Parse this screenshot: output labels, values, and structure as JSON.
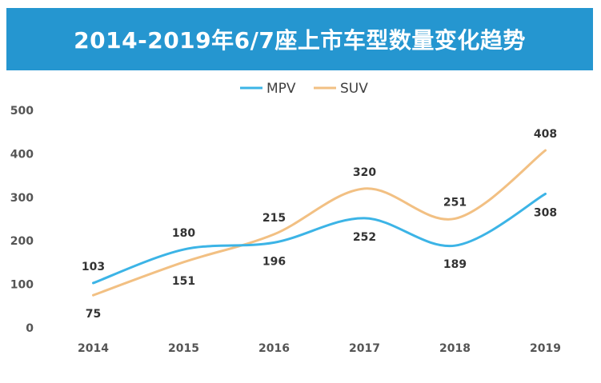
{
  "chart_data": {
    "type": "line",
    "title": "2014-2019年6/7座上市车型数量变化趋势",
    "categories": [
      "2014",
      "2015",
      "2016",
      "2017",
      "2018",
      "2019"
    ],
    "series": [
      {
        "name": "MPV",
        "values": [
          103,
          180,
          196,
          252,
          189,
          308
        ],
        "color": "#3cb4e6"
      },
      {
        "name": "SUV",
        "values": [
          75,
          151,
          215,
          320,
          251,
          408
        ],
        "color": "#f2c083"
      }
    ],
    "ylim": [
      0,
      500
    ],
    "yticks": [
      "0",
      "100",
      "200",
      "300",
      "400",
      "500"
    ],
    "grid": false,
    "legend_position": "top-center",
    "smooth": true,
    "data_labels": true
  }
}
